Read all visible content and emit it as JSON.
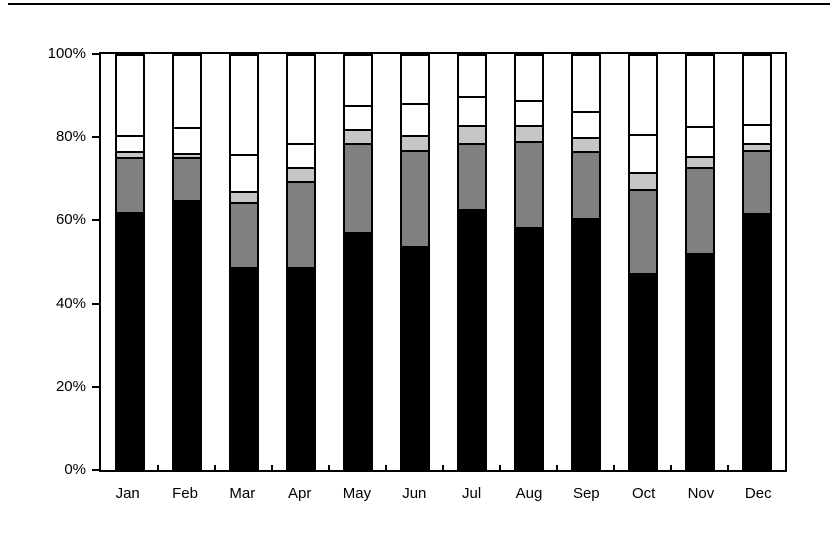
{
  "chart_data": {
    "type": "bar",
    "variant": "stacked-100-percent",
    "title": "",
    "xlabel": "",
    "ylabel": "",
    "ylim": [
      0,
      100
    ],
    "grid": false,
    "legend": "none",
    "categories": [
      "Jan",
      "Feb",
      "Mar",
      "Apr",
      "May",
      "Jun",
      "Jul",
      "Aug",
      "Sep",
      "Oct",
      "Nov",
      "Dec"
    ],
    "y_axis": {
      "tick_labels": [
        "100%",
        "80%",
        "60%",
        "40%",
        "20%",
        "0%"
      ],
      "tick_values": [
        100,
        80,
        60,
        40,
        20,
        0
      ]
    },
    "series": [
      {
        "name": "segment-black",
        "color": "#000000",
        "values": [
          61.7,
          64.5,
          48.4,
          48.2,
          56.7,
          53.4,
          62.5,
          58.0,
          60.3,
          46.9,
          51.8,
          61.3
        ]
      },
      {
        "name": "segment-gray",
        "color": "#808080",
        "values": [
          13.3,
          10.5,
          15.8,
          20.9,
          21.7,
          23.4,
          16.0,
          21.0,
          16.2,
          20.4,
          20.8,
          15.5
        ]
      },
      {
        "name": "segment-lightgray",
        "color": "#c6c6c6",
        "values": [
          1.5,
          1.0,
          2.5,
          3.5,
          3.5,
          3.5,
          4.2,
          3.8,
          3.3,
          4.0,
          2.7,
          1.5
        ]
      },
      {
        "name": "segment-white-lower",
        "color": "#ffffff",
        "values": [
          3.9,
          6.2,
          9.0,
          5.8,
          5.8,
          7.7,
          7.0,
          6.1,
          6.3,
          9.3,
          7.2,
          4.7
        ]
      },
      {
        "name": "segment-white-upper",
        "color": "#ffffff",
        "values": [
          19.6,
          17.8,
          24.3,
          21.6,
          12.3,
          12.0,
          10.3,
          11.1,
          13.9,
          19.4,
          17.5,
          17.0
        ]
      }
    ],
    "axis_color": "#000000",
    "bar_border_color": "#000000"
  }
}
